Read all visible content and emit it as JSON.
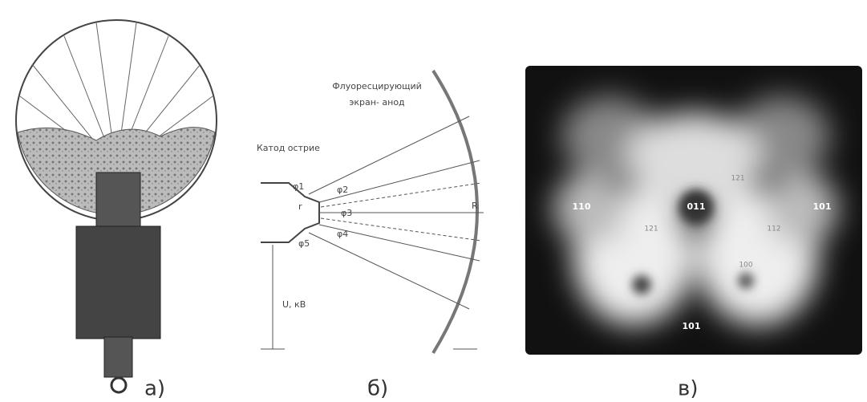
{
  "panels": [
    {
      "label": "а)"
    },
    {
      "label": "б)",
      "screen_label": [
        "Флуоресцирующий",
        "экран- анод"
      ],
      "cathode_label": "Катод острие",
      "angles": [
        "φ1",
        "φ2",
        "φ3",
        "φ4",
        "φ5"
      ],
      "tip_radius": "r",
      "screen_radius": "R",
      "voltage": "U, кВ"
    },
    {
      "label": "в)",
      "spots": [
        "110",
        "011",
        "101",
        "121",
        "121",
        "112",
        "100",
        "101"
      ]
    }
  ]
}
